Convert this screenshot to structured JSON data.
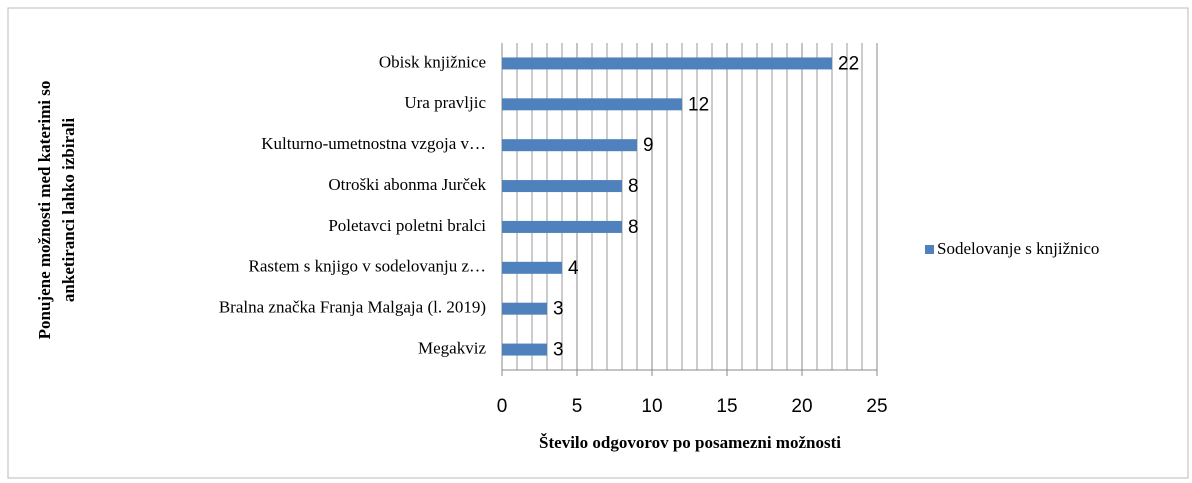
{
  "chart_data": {
    "type": "barh",
    "categories": [
      "Obisk knjižnice",
      "Ura pravljic",
      "Kulturno-umetnostna vzgoja v…",
      "Otroški abonma Jurček",
      "Poletavci poletni bralci",
      "Rastem s knjigo v sodelovanju z…",
      "Bralna značka Franja Malgaja (l. 2019)",
      "Megakviz"
    ],
    "series": [
      {
        "name": "Sodelovanje s knjižnico",
        "color": "#4f81bd",
        "values": [
          22,
          12,
          9,
          8,
          8,
          4,
          3,
          3
        ]
      }
    ],
    "xlim": [
      0,
      25
    ],
    "xticks": [
      0,
      5,
      10,
      15,
      20,
      25
    ],
    "grid": true,
    "minor_grid_step": 1,
    "x_label": "Število odgovorov po posamezni možnosti",
    "y_label": [
      "Ponujene možnosti med katerimi so",
      "anketiranci lahko izbirali"
    ],
    "legend": "right"
  }
}
